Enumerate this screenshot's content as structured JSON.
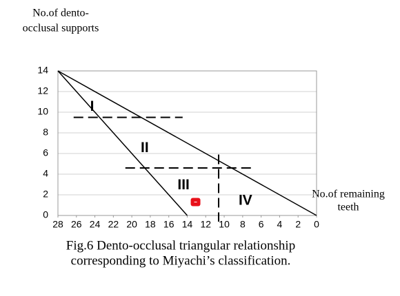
{
  "chart_data": {
    "type": "line",
    "y_label": [
      "No.of dento-",
      "occlusal supports"
    ],
    "x_label": [
      "No.of remaining",
      "teeth"
    ],
    "caption": [
      "Fig.6 Dento-occlusal triangular relationship",
      "corresponding to Miyachi’s classification."
    ],
    "xlim": [
      28,
      0
    ],
    "ylim": [
      0,
      14
    ],
    "xticks": [
      28,
      26,
      24,
      22,
      20,
      18,
      16,
      14,
      12,
      10,
      8,
      6,
      4,
      2,
      0
    ],
    "yticks": [
      0,
      2,
      4,
      6,
      8,
      10,
      12,
      14
    ],
    "grid": true,
    "series": [
      {
        "color": "#000000",
        "x": [
          28,
          14
        ],
        "values": [
          14,
          0
        ]
      },
      {
        "color": "#000000",
        "x": [
          28,
          0
        ],
        "values": [
          14,
          0
        ]
      }
    ],
    "dashed_lines": [
      {
        "color": "#000000",
        "x": [
          26.3,
          14.5
        ],
        "values": [
          9.5,
          9.5
        ]
      },
      {
        "color": "#000000",
        "x": [
          20.7,
          6.9
        ],
        "values": [
          4.6,
          4.6
        ]
      },
      {
        "color": "#000000",
        "x": [
          10.6,
          10.6
        ],
        "values": [
          5.9,
          -0.6
        ]
      }
    ],
    "point": {
      "color": "#e8101a",
      "x": 13.1,
      "y": 1.3
    },
    "regions": [
      {
        "label": "I",
        "x": 24.3,
        "y": 10.5
      },
      {
        "label": "II",
        "x": 18.6,
        "y": 6.5
      },
      {
        "label": "III",
        "x": 14.4,
        "y": 2.9
      },
      {
        "label": "IV",
        "x": 7.7,
        "y": 1.4
      }
    ]
  }
}
